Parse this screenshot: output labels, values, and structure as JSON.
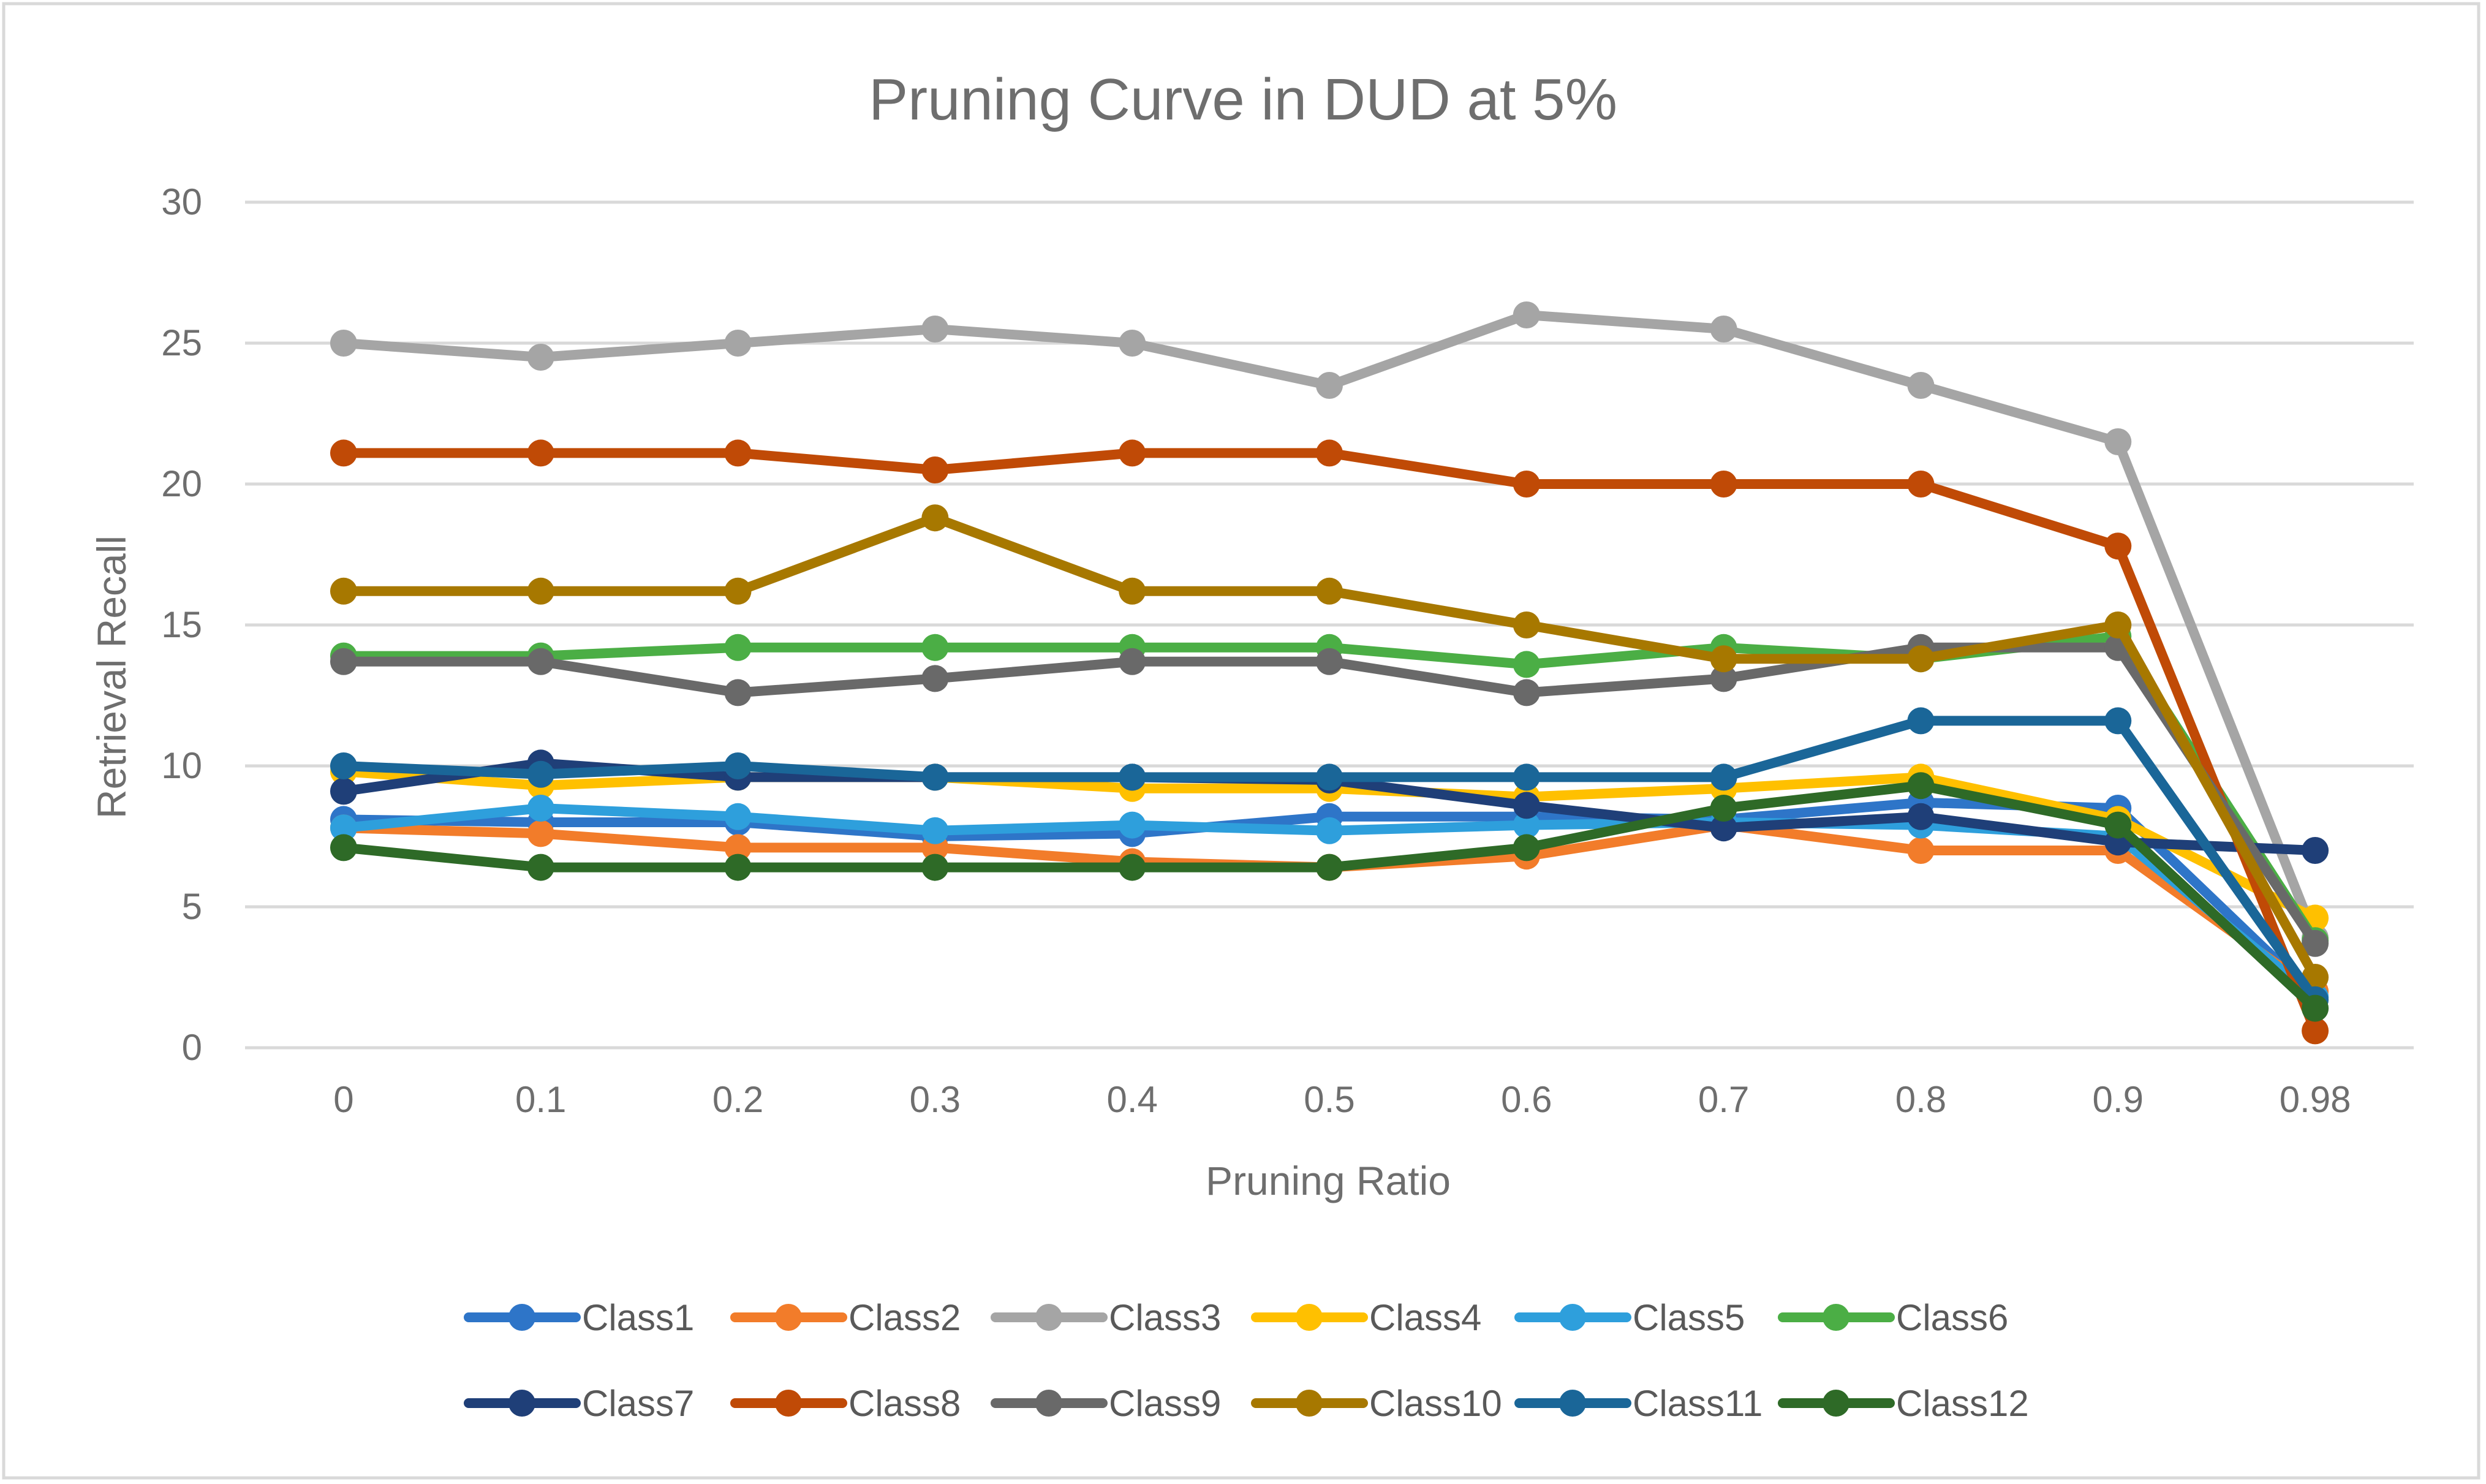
{
  "chart_data": {
    "type": "line",
    "title": "Pruning Curve in DUD at 5%",
    "xlabel": "Pruning Ratio",
    "ylabel": "Retrieval Recall",
    "categories": [
      "0",
      "0.1",
      "0.2",
      "0.3",
      "0.4",
      "0.5",
      "0.6",
      "0.7",
      "0.8",
      "0.9",
      "0.98"
    ],
    "ylim": [
      0,
      30
    ],
    "yticks": [
      "0",
      "5",
      "10",
      "15",
      "20",
      "25",
      "30"
    ],
    "grid": true,
    "legend_position": "bottom",
    "series": [
      {
        "name": "Class1",
        "color": "#2E75C8",
        "values": [
          8.1,
          8.0,
          8.0,
          7.5,
          7.6,
          8.2,
          8.2,
          8.1,
          8.7,
          8.5,
          1.8
        ]
      },
      {
        "name": "Class2",
        "color": "#F27C2A",
        "values": [
          7.8,
          7.6,
          7.1,
          7.1,
          6.6,
          6.4,
          6.8,
          7.9,
          7.0,
          7.0,
          2.0
        ]
      },
      {
        "name": "Class3",
        "color": "#A5A5A5",
        "values": [
          25.0,
          24.5,
          25.0,
          25.5,
          25.0,
          23.5,
          26.0,
          25.5,
          23.5,
          21.5,
          3.9
        ]
      },
      {
        "name": "Class4",
        "color": "#FFC000",
        "values": [
          9.8,
          9.3,
          9.6,
          9.6,
          9.2,
          9.2,
          8.9,
          9.2,
          9.6,
          8.1,
          4.6
        ]
      },
      {
        "name": "Class5",
        "color": "#2E9FDC",
        "values": [
          7.8,
          8.5,
          8.2,
          7.7,
          7.9,
          7.7,
          7.9,
          8.0,
          7.9,
          7.5,
          1.8
        ]
      },
      {
        "name": "Class6",
        "color": "#4BAE45",
        "values": [
          13.9,
          13.9,
          14.2,
          14.2,
          14.2,
          14.2,
          13.6,
          14.2,
          13.8,
          14.6,
          3.8
        ]
      },
      {
        "name": "Class7",
        "color": "#1F3F78",
        "values": [
          9.1,
          10.1,
          9.6,
          9.6,
          9.6,
          9.5,
          8.6,
          7.8,
          8.2,
          7.3,
          7.0
        ]
      },
      {
        "name": "Class8",
        "color": "#C04A06",
        "values": [
          21.1,
          21.1,
          21.1,
          20.5,
          21.1,
          21.1,
          20.0,
          20.0,
          20.0,
          17.8,
          0.6
        ]
      },
      {
        "name": "Class9",
        "color": "#696969",
        "values": [
          13.7,
          13.7,
          12.6,
          13.1,
          13.7,
          13.7,
          12.6,
          13.1,
          14.2,
          14.2,
          3.7
        ]
      },
      {
        "name": "Class10",
        "color": "#A77800",
        "values": [
          16.2,
          16.2,
          16.2,
          18.8,
          16.2,
          16.2,
          15.0,
          13.8,
          13.8,
          15.0,
          2.5
        ]
      },
      {
        "name": "Class11",
        "color": "#1A6698",
        "values": [
          10.0,
          9.7,
          10.0,
          9.6,
          9.6,
          9.6,
          9.6,
          9.6,
          11.6,
          11.6,
          1.7
        ]
      },
      {
        "name": "Class12",
        "color": "#2E6A27",
        "values": [
          7.1,
          6.4,
          6.4,
          6.4,
          6.4,
          6.4,
          7.1,
          8.5,
          9.3,
          7.9,
          1.4
        ]
      }
    ]
  }
}
